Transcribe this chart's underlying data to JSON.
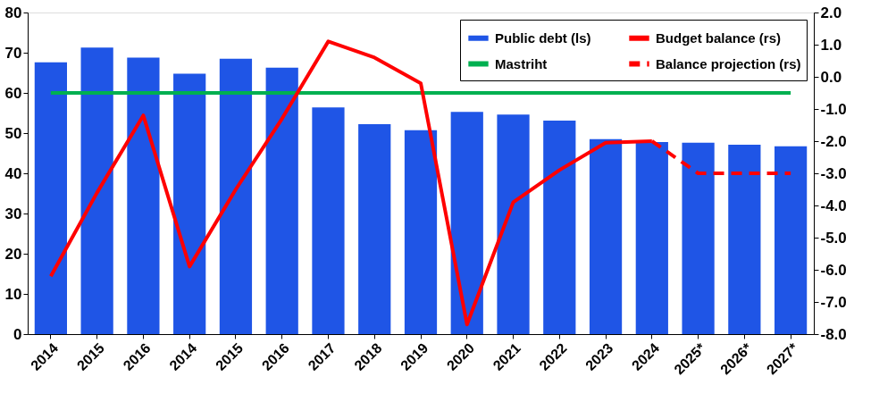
{
  "chart_data": {
    "type": "bar",
    "categories": [
      "2014",
      "2015",
      "2016",
      "2014",
      "2015",
      "2016",
      "2017",
      "2018",
      "2019",
      "2020",
      "2021",
      "2022",
      "2023",
      "2024",
      "2025*",
      "2026*",
      "2027*"
    ],
    "series": [
      {
        "name": "Public debt (ls)",
        "color": "#1f55e6",
        "values": [
          67.6,
          71.3,
          68.8,
          64.8,
          68.5,
          66.3,
          56.4,
          52.2,
          50.7,
          55.3,
          54.6,
          53.1,
          48.5,
          47.8,
          47.6,
          47.1,
          46.7
        ]
      },
      {
        "name": "Mastriht",
        "type": "line",
        "color": "#00b050",
        "values": [
          60,
          60,
          60,
          60,
          60,
          60,
          60,
          60,
          60,
          60,
          60,
          60,
          60,
          60,
          60,
          60,
          60
        ]
      },
      {
        "name": "Budget balance (rs)",
        "type": "line",
        "axis": "y2",
        "color": "#ff0000",
        "values": [
          -6.2,
          -3.6,
          -1.2,
          -5.9,
          -3.5,
          -1.3,
          1.1,
          0.6,
          -0.2,
          -7.7,
          -3.9,
          -2.9,
          -2.05,
          -2.0,
          null,
          null,
          null
        ]
      },
      {
        "name": "Balance projection (rs)",
        "type": "line",
        "axis": "y2",
        "line_style": "dashed",
        "color": "#ff0000",
        "values": [
          null,
          null,
          null,
          null,
          null,
          null,
          null,
          null,
          null,
          null,
          null,
          null,
          null,
          -2.0,
          -3.0,
          -3.0,
          -3.0
        ]
      }
    ],
    "ylim": [
      0,
      80
    ],
    "yticks": [
      0,
      10,
      20,
      30,
      40,
      50,
      60,
      70,
      80
    ],
    "y2lim": [
      -8,
      2
    ],
    "y2ticks": [
      {
        "value": 2,
        "label": "2.0"
      },
      {
        "value": 1,
        "label": "1.0"
      },
      {
        "value": 0,
        "label": "0.0"
      },
      {
        "value": -1,
        "label": "-1.0"
      },
      {
        "value": -2,
        "label": "-2.0"
      },
      {
        "value": -3,
        "label": "-3.0"
      },
      {
        "value": -4,
        "label": "-4.0"
      },
      {
        "value": -5,
        "label": "-5.0"
      },
      {
        "value": -6,
        "label": "-6.0"
      },
      {
        "value": -7,
        "label": "-7.0"
      },
      {
        "value": -8,
        "label": "-8.0"
      }
    ],
    "grid": false,
    "legend": "top right"
  }
}
